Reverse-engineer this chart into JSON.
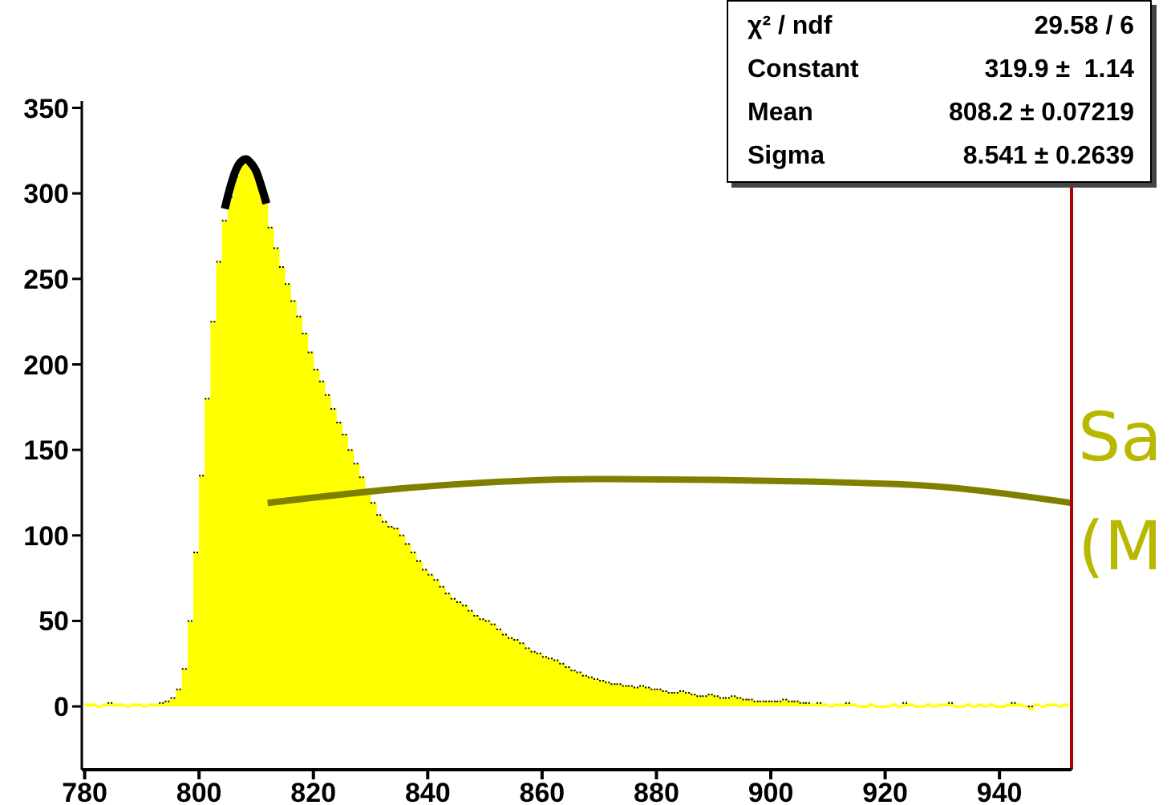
{
  "chart_data": {
    "type": "histogram",
    "bins": [
      780,
      781,
      782,
      783,
      784,
      785,
      786,
      787,
      788,
      789,
      790,
      791,
      792,
      793,
      794,
      795,
      796,
      797,
      798,
      799,
      800,
      801,
      802,
      803,
      804,
      805,
      806,
      807,
      808,
      809,
      810,
      811,
      812,
      813,
      814,
      815,
      816,
      817,
      818,
      819,
      820,
      821,
      822,
      823,
      824,
      825,
      826,
      827,
      828,
      829,
      830,
      831,
      832,
      833,
      834,
      835,
      836,
      837,
      838,
      839,
      840,
      841,
      842,
      843,
      844,
      845,
      846,
      847,
      848,
      849,
      850,
      851,
      852,
      853,
      854,
      855,
      856,
      857,
      858,
      859,
      860,
      861,
      862,
      863,
      864,
      865,
      866,
      867,
      868,
      869,
      870,
      871,
      872,
      873,
      874,
      875,
      876,
      877,
      878,
      879,
      880,
      881,
      882,
      883,
      884,
      885,
      886,
      887,
      888,
      889,
      890,
      891,
      892,
      893,
      894,
      895,
      896,
      897,
      898,
      899,
      900,
      901,
      902,
      903,
      904,
      905,
      906,
      907,
      908,
      909,
      910,
      911,
      912,
      913,
      914,
      915,
      916,
      917,
      918,
      919,
      920,
      921,
      922,
      923,
      924,
      925,
      926,
      927,
      928,
      929,
      930,
      931,
      932,
      933,
      934,
      935,
      936,
      937,
      938,
      939,
      940,
      941,
      942,
      943,
      944,
      945,
      946,
      947,
      948,
      949,
      950,
      951,
      952
    ],
    "values": [
      1,
      1,
      0,
      1,
      2,
      1,
      1,
      0,
      1,
      1,
      0,
      1,
      1,
      2,
      3,
      5,
      10,
      22,
      50,
      90,
      135,
      180,
      225,
      260,
      284,
      298,
      310,
      317,
      320,
      318,
      308,
      295,
      280,
      268,
      257,
      247,
      237,
      228,
      218,
      207,
      197,
      190,
      182,
      174,
      166,
      159,
      150,
      142,
      134,
      126,
      119,
      112,
      108,
      105,
      104,
      100,
      95,
      90,
      85,
      80,
      77,
      74,
      70,
      66,
      63,
      61,
      59,
      56,
      53,
      51,
      50,
      48,
      45,
      42,
      40,
      39,
      37,
      34,
      32,
      31,
      29,
      28,
      27,
      25,
      23,
      21,
      20,
      18,
      17,
      16,
      15,
      14,
      13,
      13,
      12,
      12,
      11,
      12,
      11,
      10,
      10,
      9,
      8,
      8,
      9,
      8,
      7,
      6,
      6,
      7,
      6,
      5,
      5,
      6,
      5,
      4,
      4,
      3,
      3,
      3,
      3,
      3,
      4,
      3,
      3,
      2,
      2,
      1,
      2,
      1,
      0,
      1,
      1,
      2,
      1,
      0,
      -1,
      1,
      0,
      0,
      0,
      1,
      0,
      2,
      1,
      0,
      0,
      1,
      0,
      1,
      1,
      2,
      0,
      0,
      1,
      0,
      1,
      0,
      1,
      0,
      -1,
      1,
      2,
      1,
      0,
      -2,
      1,
      0,
      1,
      1,
      0,
      1
    ],
    "color": "#ffff00",
    "series": [
      {
        "type": "line",
        "color": "#000000",
        "x": [
          804.5,
          805.5,
          806.5,
          807.5,
          808.2,
          809,
          810,
          811,
          811.8
        ],
        "values": [
          291,
          304,
          314,
          319,
          320,
          318,
          313,
          303,
          294
        ]
      },
      {
        "type": "line",
        "color": "#808000",
        "x": [
          812,
          841,
          869,
          922,
          952.6
        ],
        "values": [
          119,
          129,
          133,
          130,
          119
        ]
      }
    ],
    "xlim": [
      779.5,
      952.6
    ],
    "xticks": [
      780,
      800,
      820,
      840,
      860,
      880,
      900,
      920,
      940
    ],
    "ylim": [
      -37,
      354
    ],
    "yticks": [
      0,
      50,
      100,
      150,
      200,
      250,
      300,
      350
    ],
    "ref_lines": [
      {
        "axis": "x",
        "value": 952.6,
        "color": "#b00000"
      }
    ],
    "annotations": [
      "χ² / ndf",
      "29.58 / 6",
      "Constant",
      "319.9 ±  1.14",
      "Mean",
      "808.2 ± 0.07219",
      "Sigma",
      "8.541 ± 0.2639",
      "Sa",
      "(M"
    ]
  }
}
